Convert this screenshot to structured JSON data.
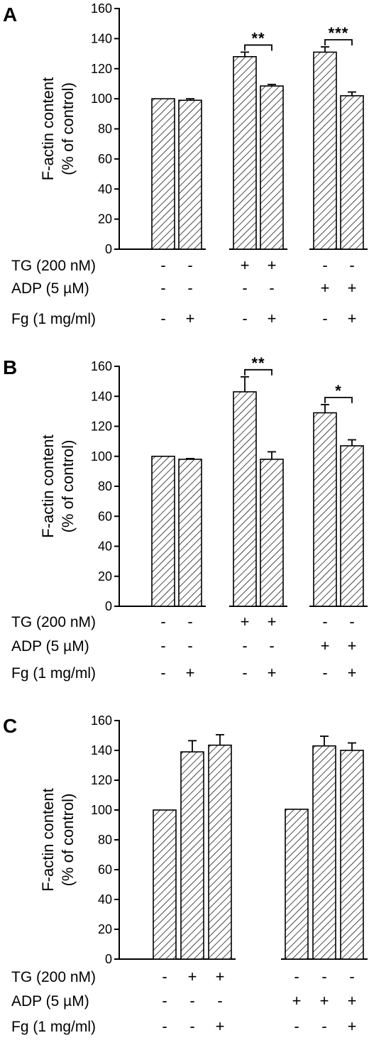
{
  "chart_data": [
    {
      "type": "bar",
      "panel": "A",
      "ylabel": "F-actin content",
      "ylabel2": "(% of control)",
      "ylim": [
        0,
        160
      ],
      "yticks": [
        0,
        20,
        40,
        60,
        80,
        100,
        120,
        140,
        160
      ],
      "groups": [
        [
          0,
          1
        ],
        [
          2,
          3
        ],
        [
          4,
          5
        ]
      ],
      "values": [
        100,
        99,
        128,
        108.5,
        131,
        102
      ],
      "errors": [
        0,
        1,
        3,
        1,
        3.5,
        2.5
      ],
      "significance": [
        {
          "bars": [
            2,
            3
          ],
          "label": "**"
        },
        {
          "bars": [
            4,
            5
          ],
          "label": "***"
        }
      ],
      "conditions": [
        {
          "label": "TG (200 nM)",
          "signs": [
            "-",
            "-",
            "+",
            "+",
            "-",
            "-"
          ]
        },
        {
          "label": "ADP (5 µM)",
          "signs": [
            "-",
            "-",
            "-",
            "-",
            "+",
            "+"
          ]
        },
        {
          "label": "Fg (1 mg/ml)",
          "signs": [
            "-",
            "+",
            "-",
            "+",
            "-",
            "+"
          ]
        }
      ]
    },
    {
      "type": "bar",
      "panel": "B",
      "ylabel": "F-actin content",
      "ylabel2": "(% of control)",
      "ylim": [
        0,
        160
      ],
      "yticks": [
        0,
        20,
        40,
        60,
        80,
        100,
        120,
        140,
        160
      ],
      "groups": [
        [
          0,
          1
        ],
        [
          2,
          3
        ],
        [
          4,
          5
        ]
      ],
      "values": [
        100,
        98,
        143,
        98,
        129,
        107
      ],
      "errors": [
        0,
        0.5,
        10,
        5,
        5.5,
        4
      ],
      "significance": [
        {
          "bars": [
            2,
            3
          ],
          "label": "**"
        },
        {
          "bars": [
            4,
            5
          ],
          "label": "*"
        }
      ],
      "conditions": [
        {
          "label": "TG (200 nM)",
          "signs": [
            "-",
            "-",
            "+",
            "+",
            "-",
            "-"
          ]
        },
        {
          "label": "ADP (5 µM)",
          "signs": [
            "-",
            "-",
            "-",
            "-",
            "+",
            "+"
          ]
        },
        {
          "label": "Fg (1 mg/ml)",
          "signs": [
            "-",
            "+",
            "-",
            "+",
            "-",
            "+"
          ]
        }
      ]
    },
    {
      "type": "bar",
      "panel": "C",
      "ylabel": "F-actin content",
      "ylabel2": "(% of control)",
      "ylim": [
        0,
        160
      ],
      "yticks": [
        0,
        20,
        40,
        60,
        80,
        100,
        120,
        140,
        160
      ],
      "groups": [
        [
          0,
          1,
          2
        ],
        [
          3,
          4,
          5
        ]
      ],
      "values": [
        100,
        139,
        143.5,
        100.5,
        143,
        140
      ],
      "errors": [
        0,
        7.5,
        7,
        0,
        6.5,
        5
      ],
      "significance": [],
      "conditions": [
        {
          "label": "TG (200 nM)",
          "signs": [
            "-",
            "+",
            "+",
            "-",
            "-",
            "-"
          ]
        },
        {
          "label": "ADP  (5 µM)",
          "signs": [
            "-",
            "-",
            "-",
            "+",
            "+",
            "+"
          ]
        },
        {
          "label": "Fg (1 mg/ml)",
          "signs": [
            "-",
            "-",
            "+",
            "-",
            "-",
            "+"
          ]
        }
      ]
    }
  ]
}
